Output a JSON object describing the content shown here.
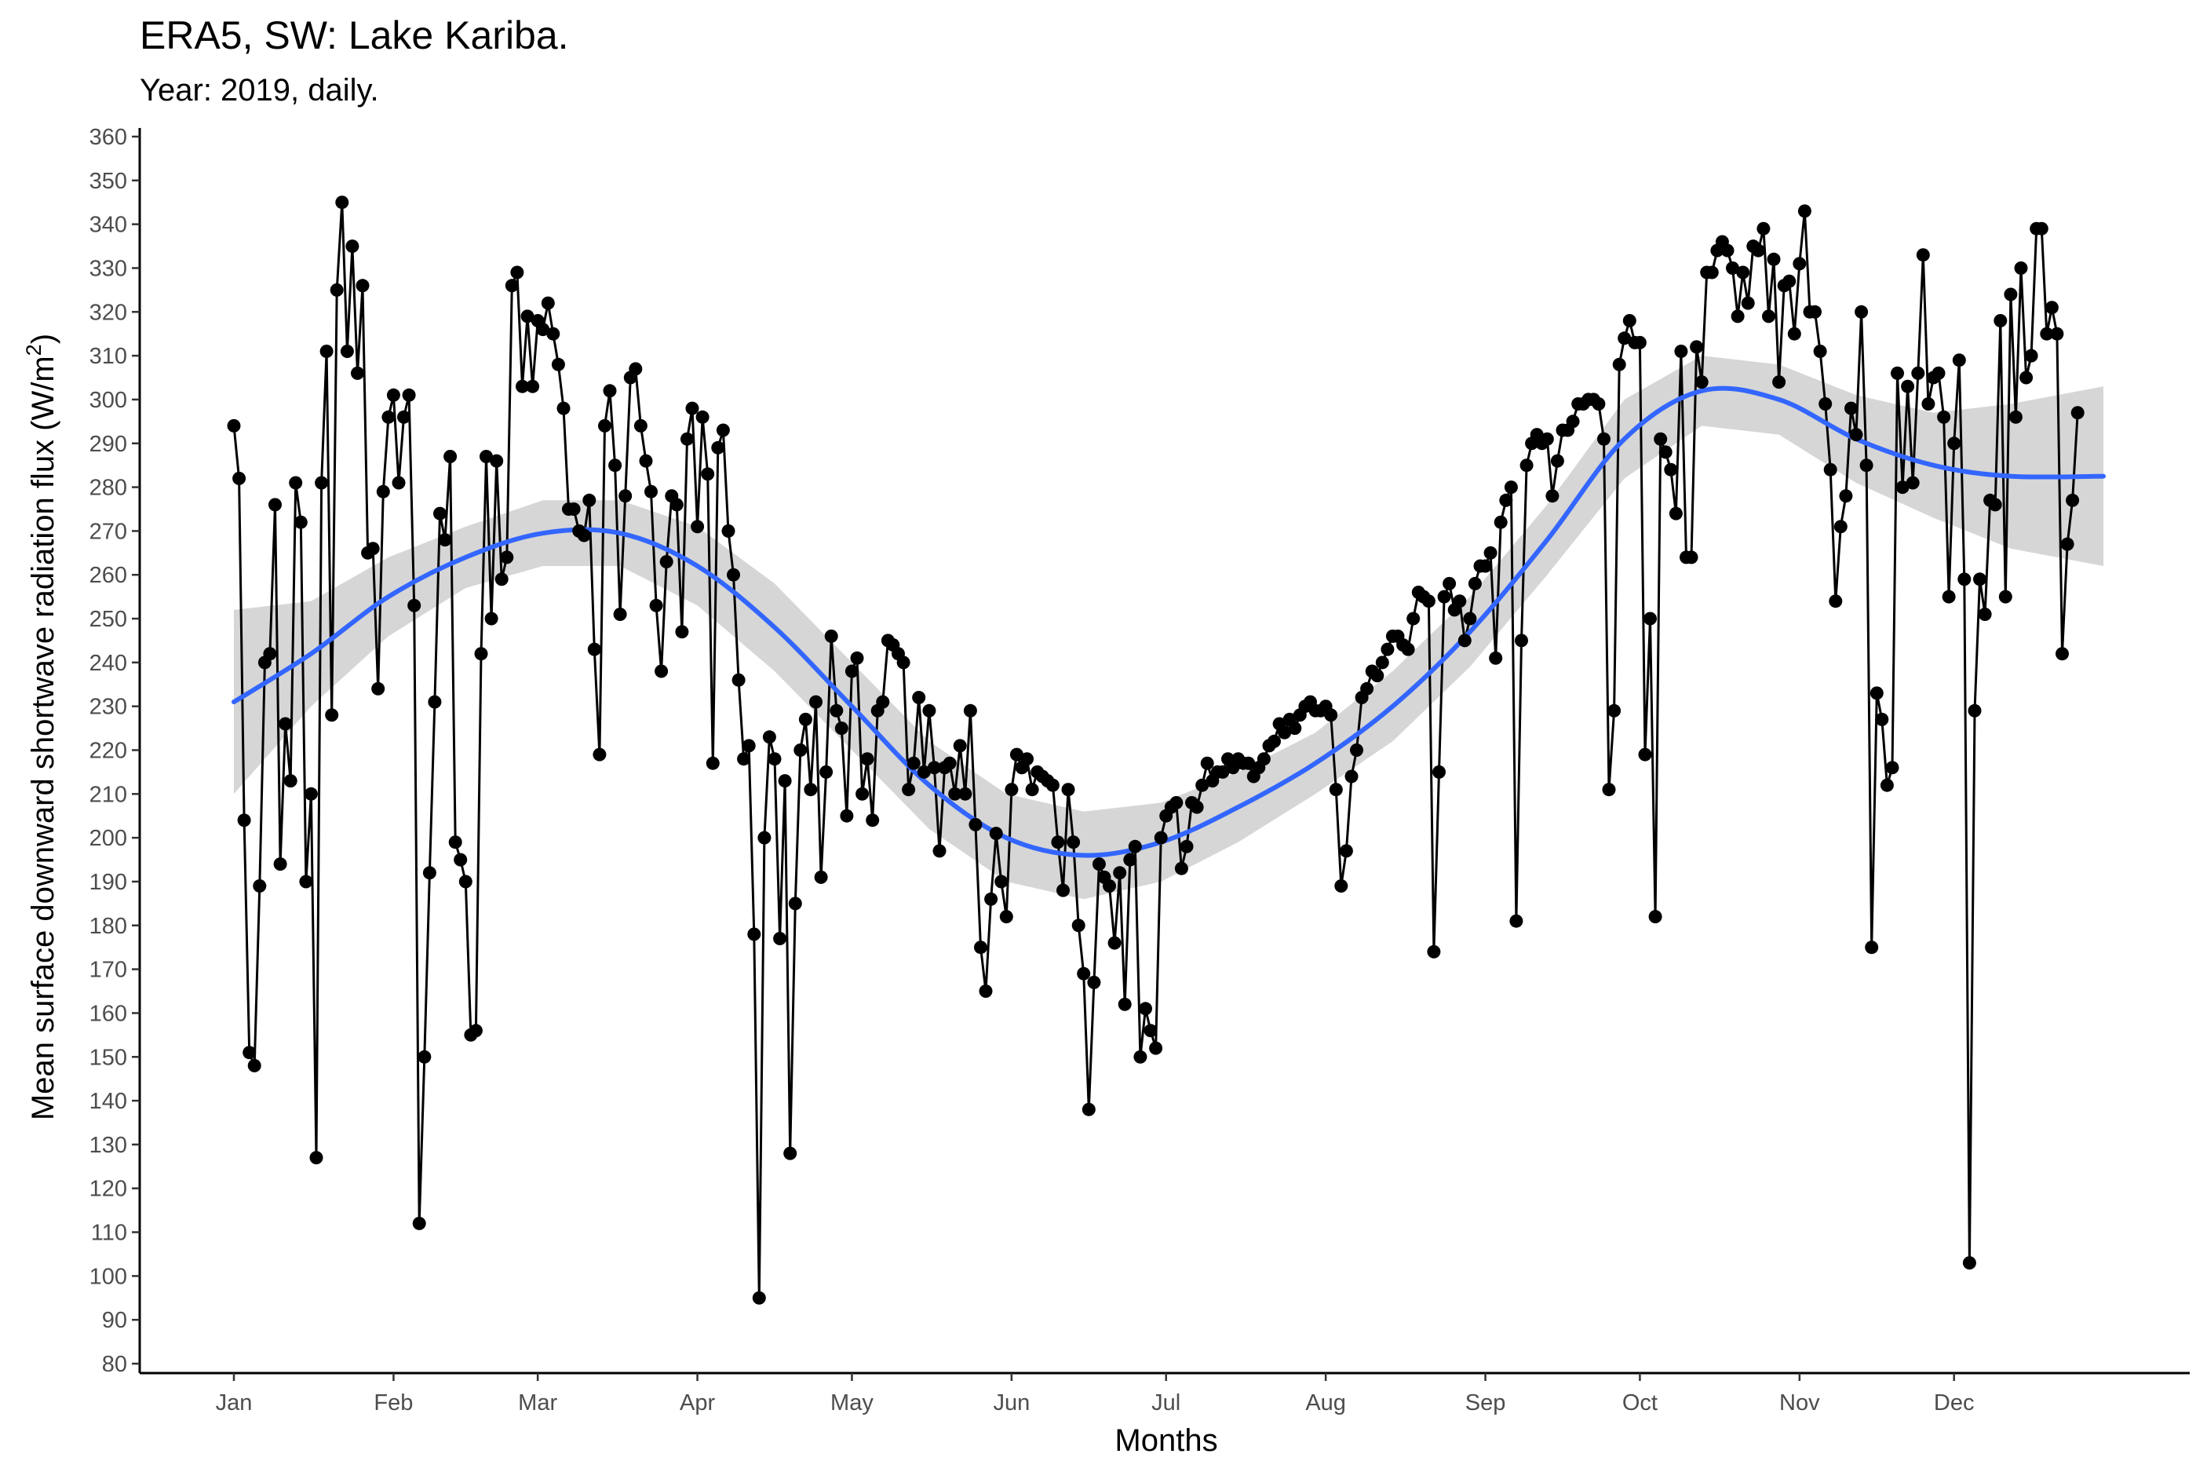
{
  "title": "ERA5, SW: Lake Kariba.",
  "subtitle": "Year: 2019, daily.",
  "chart_data": {
    "type": "line",
    "title": "ERA5, SW: Lake Kariba.",
    "subtitle": "Year: 2019, daily.",
    "xlabel": "Months",
    "ylabel": "Mean surface downward shortwave radiation flux (W/m²)",
    "ylabel_main": "Mean surface downward shortwave radiation flux (W/m",
    "ylabel_sup": "2",
    "ylabel_end": ")",
    "x_start_date": "2019-01-01",
    "xlim": [
      "2019-01-01",
      "2019-12-31"
    ],
    "ylim": [
      80,
      360
    ],
    "y_ticks": [
      80,
      90,
      100,
      110,
      120,
      130,
      140,
      150,
      160,
      170,
      180,
      190,
      200,
      210,
      220,
      230,
      240,
      250,
      260,
      270,
      280,
      290,
      300,
      310,
      320,
      330,
      340,
      350,
      360
    ],
    "x_ticks": [
      {
        "label": "Jan",
        "date": "2019-01-01"
      },
      {
        "label": "Feb",
        "date": "2019-02-01"
      },
      {
        "label": "Mar",
        "date": "2019-03-01"
      },
      {
        "label": "Apr",
        "date": "2019-04-01"
      },
      {
        "label": "May",
        "date": "2019-05-01"
      },
      {
        "label": "Jun",
        "date": "2019-06-01"
      },
      {
        "label": "Jul",
        "date": "2019-07-01"
      },
      {
        "label": "Aug",
        "date": "2019-08-01"
      },
      {
        "label": "Sep",
        "date": "2019-09-01"
      },
      {
        "label": "Oct",
        "date": "2019-10-01"
      },
      {
        "label": "Nov",
        "date": "2019-11-01"
      },
      {
        "label": "Dec",
        "date": "2019-12-01"
      }
    ],
    "grid": false,
    "legend": "none",
    "colors": {
      "points": "#000000",
      "line": "#000000",
      "smooth": "#3366FF",
      "ribbon": "#999999"
    },
    "series": [
      {
        "kind": "points+line",
        "values": [
          294,
          282,
          204,
          151,
          148,
          189,
          240,
          242,
          276,
          194,
          226,
          213,
          281,
          272,
          190,
          210,
          127,
          281,
          311,
          228,
          325,
          345,
          311,
          335,
          306,
          326,
          265,
          266,
          234,
          279,
          296,
          301,
          281,
          296,
          301,
          253,
          112,
          150,
          192,
          231,
          274,
          268,
          287,
          199,
          195,
          190,
          155,
          156,
          242,
          287,
          250,
          286,
          259,
          264,
          326,
          329,
          303,
          319,
          303,
          318,
          316,
          322,
          315,
          308,
          298,
          275,
          275,
          270,
          269,
          277,
          243,
          219,
          294,
          302,
          285,
          251,
          278,
          305,
          307,
          294,
          286,
          279,
          253,
          238,
          263,
          278,
          276,
          247,
          291,
          298,
          271,
          296,
          283,
          217,
          289,
          293,
          270,
          260,
          236,
          218,
          221,
          178,
          95,
          200,
          223,
          218,
          177,
          213,
          128,
          185,
          220,
          227,
          211,
          231,
          191,
          215,
          246,
          229,
          225,
          205,
          238,
          241,
          210,
          218,
          204,
          229,
          231,
          245,
          244,
          242,
          240,
          211,
          217,
          232,
          215,
          229,
          216,
          197,
          216,
          217,
          210,
          221,
          210,
          229,
          203,
          175,
          165,
          186,
          201,
          190,
          182,
          211,
          219,
          216,
          218,
          211,
          215,
          214,
          213,
          212,
          199,
          188,
          211,
          199,
          180,
          169,
          138,
          167,
          194,
          191,
          189,
          176,
          192,
          162,
          195,
          198,
          150,
          161,
          156,
          152,
          200,
          205,
          207,
          208,
          193,
          198,
          208,
          207,
          212,
          217,
          213,
          215,
          215,
          218,
          216,
          218,
          217,
          217,
          214,
          216,
          218,
          221,
          222,
          226,
          224,
          227,
          225,
          228,
          230,
          231,
          229,
          229,
          230,
          228,
          211,
          189,
          197,
          214,
          220,
          232,
          234,
          238,
          237,
          240,
          243,
          246,
          246,
          244,
          243,
          250,
          256,
          255,
          254,
          174,
          215,
          255,
          258,
          252,
          254,
          245,
          250,
          258,
          262,
          262,
          265,
          241,
          272,
          277,
          280,
          181,
          245,
          285,
          290,
          292,
          290,
          291,
          278,
          286,
          293,
          293,
          295,
          299,
          299,
          300,
          300,
          299,
          291,
          211,
          229,
          308,
          314,
          318,
          313,
          313,
          219,
          250,
          182,
          291,
          288,
          284,
          274,
          311,
          264,
          264,
          312,
          304,
          329,
          329,
          334,
          336,
          334,
          330,
          319,
          329,
          322,
          335,
          334,
          339,
          319,
          332,
          304,
          326,
          327,
          315,
          331,
          343,
          320,
          320,
          311,
          299,
          284,
          254,
          271,
          278,
          298,
          292,
          320,
          285,
          175,
          233,
          227,
          212,
          216,
          306,
          280,
          303,
          281,
          306,
          333,
          299,
          305,
          306,
          296,
          255,
          290,
          309,
          259,
          103,
          229,
          259,
          251,
          277,
          276,
          318,
          255,
          324,
          296,
          330,
          305,
          310,
          339,
          339,
          315,
          321,
          315,
          242,
          267,
          277,
          297
        ]
      },
      {
        "kind": "smooth",
        "x_day": [
          0,
          15,
          30,
          45,
          60,
          75,
          90,
          105,
          120,
          135,
          150,
          165,
          180,
          195,
          210,
          225,
          240,
          255,
          270,
          285,
          300,
          315,
          330,
          345,
          363
        ],
        "fit": [
          231,
          242,
          255,
          264,
          269.5,
          269.5,
          262,
          248,
          230,
          212,
          200,
          196,
          199,
          207,
          217,
          230,
          247,
          268,
          291,
          302,
          300,
          291,
          285,
          282.5,
          282.5
        ],
        "lower": [
          210,
          230,
          246,
          257,
          262,
          262,
          253,
          238,
          220,
          202,
          190,
          186,
          190,
          199,
          210,
          222,
          239,
          260,
          282,
          294,
          292,
          281,
          273,
          266,
          262
        ],
        "upper": [
          252,
          254,
          264,
          271,
          277,
          277,
          271,
          258,
          240,
          222,
          210,
          206,
          208,
          215,
          224,
          238,
          255,
          276,
          300,
          310,
          308,
          301,
          297,
          299,
          303
        ]
      }
    ]
  }
}
